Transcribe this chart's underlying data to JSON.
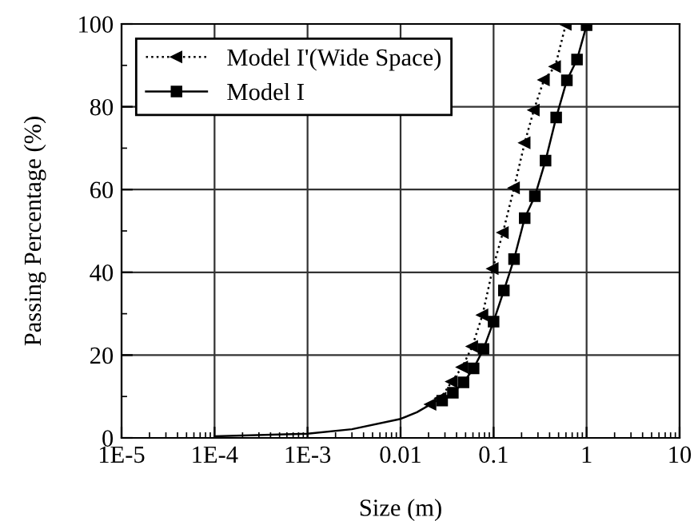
{
  "chart_data": {
    "type": "line",
    "xlabel": "Size (m)",
    "ylabel": "Passing Percentage (%)",
    "log": "x",
    "xlim": [
      1e-05,
      10
    ],
    "ylim": [
      0,
      100
    ],
    "xticks": [
      {
        "value": 1e-05,
        "label": "1E-5"
      },
      {
        "value": 0.0001,
        "label": "1E-4"
      },
      {
        "value": 0.001,
        "label": "1E-3"
      },
      0.01,
      0.1,
      1,
      10
    ],
    "yticks": [
      0,
      20,
      40,
      60,
      80,
      100
    ],
    "grid": true,
    "legend": "top left",
    "series": [
      {
        "name": "Model I'(Wide Space)",
        "color": "#000000",
        "marker": "triangle",
        "line_style": "dotted",
        "x": [
          0.021,
          0.027,
          0.0355,
          0.046,
          0.059,
          0.076,
          0.098,
          0.126,
          0.166,
          0.216,
          0.271,
          0.348,
          0.459,
          0.598
        ],
        "values": [
          8.1,
          9.6,
          13.6,
          17.1,
          22.1,
          29.7,
          40.9,
          49.6,
          60.4,
          71.3,
          79.2,
          86.5,
          89.7,
          99.9
        ]
      },
      {
        "name": "Model I",
        "color": "#000000",
        "marker": "square",
        "line_style": "solid",
        "x": [
          0.028,
          0.0365,
          0.0475,
          0.061,
          0.078,
          0.1,
          0.129,
          0.166,
          0.216,
          0.278,
          0.362,
          0.471,
          0.614,
          0.789,
          1.0
        ],
        "values": [
          9.0,
          10.9,
          13.4,
          16.8,
          21.5,
          28.1,
          35.6,
          43.2,
          53.1,
          58.4,
          67.0,
          77.4,
          86.4,
          91.4,
          99.7
        ]
      },
      {
        "color": "#000000",
        "marker": "none",
        "line_style": "solid",
        "x": [
          0.0001,
          0.001,
          0.003,
          0.01,
          0.015,
          0.021
        ],
        "values": [
          0.4,
          1.0,
          2.1,
          4.6,
          6.2,
          8.1
        ]
      }
    ]
  }
}
